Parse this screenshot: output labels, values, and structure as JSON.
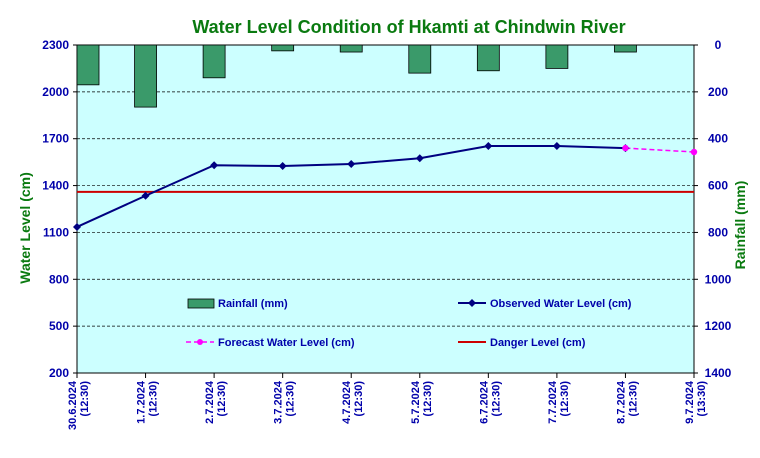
{
  "chart_data": {
    "type": "bar+line",
    "title": "Water Level Condition of Hkamti at Chindwin River",
    "ylabel_left": "Water Level (cm)",
    "ylabel_right": "Rainfall (mm)",
    "ylim_left": [
      200,
      2300
    ],
    "yticks_left": [
      200,
      500,
      800,
      1100,
      1400,
      1700,
      2000,
      2300
    ],
    "ylim_right": [
      0,
      1400
    ],
    "yticks_right": [
      0,
      200,
      400,
      600,
      800,
      1000,
      1200,
      1400
    ],
    "right_axis_inverted": true,
    "grid": true,
    "x_dates": [
      "30.6.2024",
      "1.7.2024",
      "2.7.2024",
      "3.7.2024",
      "4.7.2024",
      "5.7.2024",
      "6.7.2024",
      "7.7.2024",
      "8.7.2024",
      "9.7.2024"
    ],
    "x_times": [
      "(12:30)",
      "(12:30)",
      "(12:30)",
      "(12:30)",
      "(12:30)",
      "(12:30)",
      "(12:30)",
      "(12:30)",
      "(12:30)",
      "(13:30)"
    ],
    "series": [
      {
        "name": "Rainfall (mm)",
        "type": "bar",
        "axis": "right",
        "color": "#3a9a6a",
        "values": [
          170,
          265,
          140,
          25,
          30,
          120,
          110,
          100,
          30,
          null
        ]
      },
      {
        "name": "Observed Water Level (cm)",
        "type": "line",
        "axis": "left",
        "color": "#000080",
        "values": [
          1135,
          1335,
          1530,
          1525,
          1538,
          1575,
          1653,
          1653,
          1640,
          null
        ]
      },
      {
        "name": "Forecast Water Level (cm)",
        "type": "line",
        "dashed": true,
        "axis": "left",
        "color": "#ff00ff",
        "values": [
          null,
          null,
          null,
          null,
          null,
          null,
          null,
          null,
          1640,
          1615
        ]
      },
      {
        "name": "Danger Level (cm)",
        "type": "hline",
        "axis": "left",
        "color": "#cc0000",
        "value": 1360
      }
    ],
    "legend_position": "inside-center"
  }
}
